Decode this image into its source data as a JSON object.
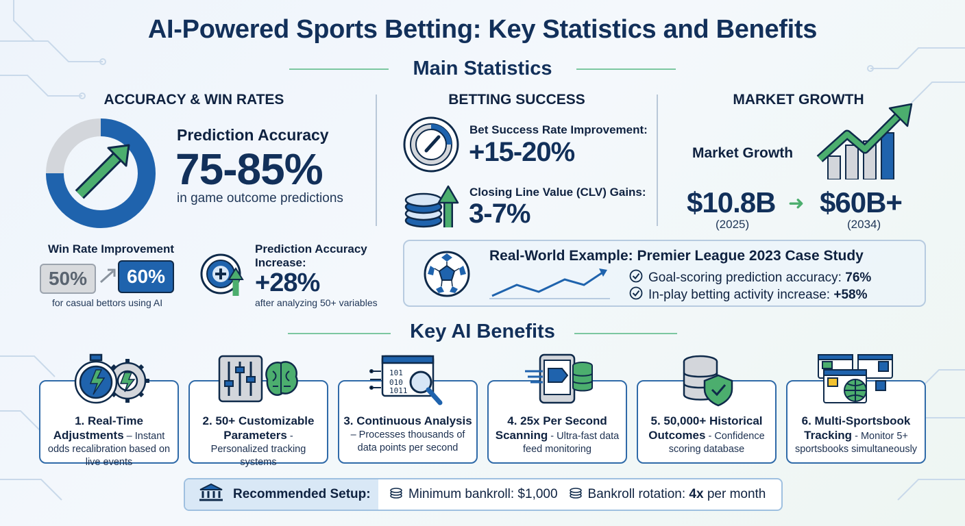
{
  "title": "AI-Powered Sports Betting: Key Statistics and Benefits",
  "main_stats": {
    "heading": "Main Statistics",
    "accuracy": {
      "heading": "ACCURACY & WIN RATES",
      "label": "Prediction Accuracy",
      "value": "75-85%",
      "sub": "in game outcome predictions",
      "win_rate": {
        "label": "Win Rate Improvement",
        "from": "50%",
        "to": "60%",
        "sub": "for casual bettors using AI"
      },
      "increase": {
        "label_line1": "Prediction Accuracy",
        "label_line2": "Increase:",
        "value": "+28%",
        "sub": "after analyzing 50+ variables"
      }
    },
    "betting": {
      "heading": "BETTING SUCCESS",
      "success_label": "Bet Success Rate Improvement:",
      "success_value": "+15-20%",
      "clv_label": "Closing Line Value (CLV) Gains:",
      "clv_value": "3-7%"
    },
    "market": {
      "heading": "MARKET GROWTH",
      "label": "Market Growth",
      "from_value": "$10.8B",
      "from_year": "(2025)",
      "arrow": "➜",
      "to_value": "$60B+",
      "to_year": "(2034)"
    },
    "case_study": {
      "title": "Real-World Example: Premier League 2023 Case Study",
      "item1_text": "Goal-scoring prediction accuracy: ",
      "item1_value": "76%",
      "item2_text": "In-play betting activity increase: ",
      "item2_value": "+58%"
    }
  },
  "benefits": {
    "heading": "Key AI Benefits",
    "items": [
      {
        "title": "1. Real-Time Adjustments",
        "desc": " – Instant odds recalibration based on live events"
      },
      {
        "title": "2. 50+ Customizable Parameters",
        "desc": " - Personalized tracking systems"
      },
      {
        "title": "3. Continuous Analysis",
        "desc": " – Processes thousands of data points per second"
      },
      {
        "title": "4. 25x Per Second Scanning",
        "desc": " - Ultra-fast data feed monitoring"
      },
      {
        "title": "5. 50,000+ Historical Outcomes",
        "desc": " - Confidence scoring database"
      },
      {
        "title": "6. Multi-Sportsbook Tracking",
        "desc": " - Monitor 5+ sportsbooks simultaneously"
      }
    ]
  },
  "setup": {
    "label": "Recommended Setup:",
    "item1": "Minimum bankroll: $1,000",
    "item2_prefix": "Bankroll rotation: ",
    "item2_bold": "4x",
    "item2_suffix": " per month"
  },
  "colors": {
    "navy": "#12305a",
    "blue": "#2f6aa8",
    "green": "#4cae6e",
    "light_gray": "#d0d4da"
  }
}
